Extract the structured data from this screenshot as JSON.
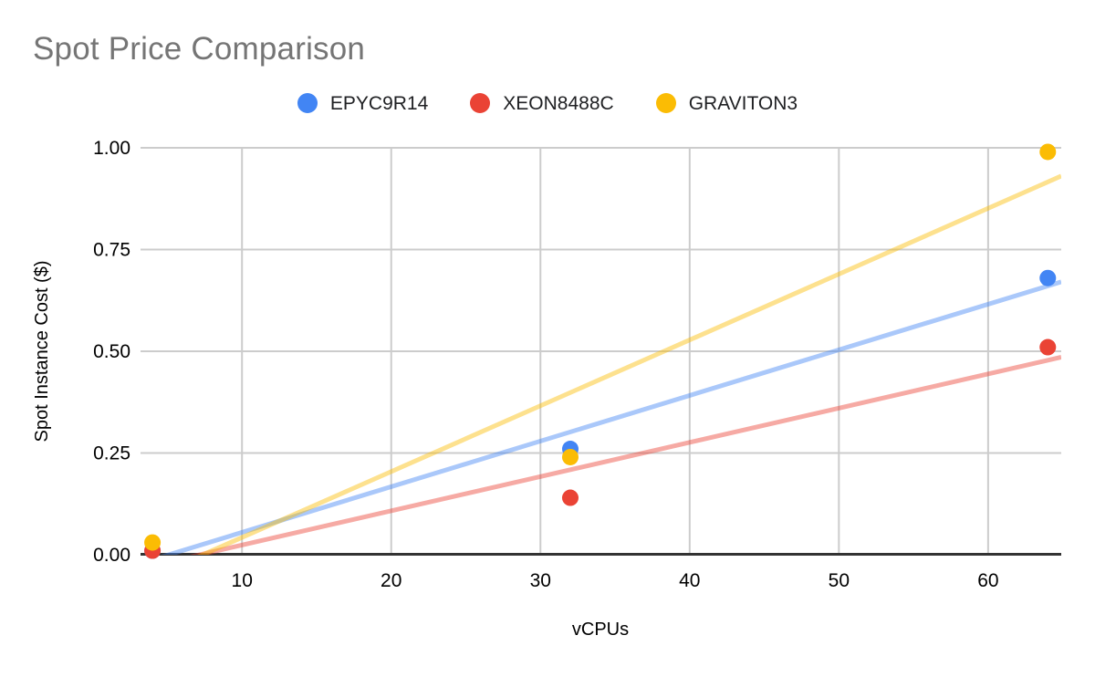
{
  "styles": {
    "background": "#ffffff",
    "title_color": "#757575",
    "tick_label_color": "#000000",
    "axis_title_color": "#000000",
    "legend_label_color": "#202124",
    "gridline_color": "#cccccc",
    "axis_line_color": "#333333"
  },
  "chart_data": {
    "type": "scatter",
    "title": "Spot Price Comparison",
    "xlabel": "vCPUs",
    "ylabel": "Spot Instance Cost ($)",
    "xlim": [
      3.2,
      64.9
    ],
    "ylim": [
      0,
      1.0
    ],
    "x_ticks": [
      10,
      20,
      30,
      40,
      50,
      60
    ],
    "y_ticks": [
      0,
      0.25,
      0.5,
      0.75,
      1.0
    ],
    "y_tick_labels": [
      "0.00",
      "0.25",
      "0.50",
      "0.75",
      "1.00"
    ],
    "grid": true,
    "legend_position": "top-center",
    "point_radius": 9,
    "trendline": "linear",
    "trendline_opacity": 0.45,
    "series": [
      {
        "name": "EPYC9R14",
        "color": "#4285F4",
        "points": [
          [
            4,
            0.01
          ],
          [
            32,
            0.26
          ],
          [
            64,
            0.68
          ]
        ]
      },
      {
        "name": "XEON8488C",
        "color": "#EA4335",
        "points": [
          [
            4,
            0.01
          ],
          [
            32,
            0.14
          ],
          [
            64,
            0.51
          ]
        ]
      },
      {
        "name": "GRAVITON3",
        "color": "#FBBC04",
        "points": [
          [
            4,
            0.03
          ],
          [
            32,
            0.24
          ],
          [
            64,
            0.99
          ]
        ]
      }
    ]
  }
}
